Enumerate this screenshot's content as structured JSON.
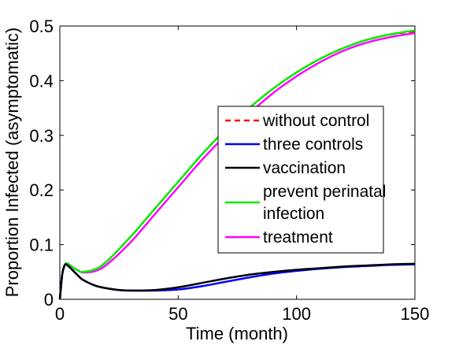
{
  "chart_data": {
    "type": "line",
    "title": "",
    "xlabel": "Time (month)",
    "ylabel": "Proportion Infected (asymptomatic)",
    "xlim": [
      0,
      150
    ],
    "ylim": [
      0,
      0.5
    ],
    "xticks": [
      0,
      50,
      100,
      150
    ],
    "yticks": [
      0,
      0.1,
      0.2,
      0.3,
      0.4,
      0.5
    ],
    "xtick_labels": [
      "0",
      "50",
      "100",
      "150"
    ],
    "ytick_labels": [
      "0",
      "0.1",
      "0.2",
      "0.3",
      "0.4",
      "0.5"
    ],
    "grid": false,
    "legend_position": "right",
    "series": [
      {
        "name": "without control",
        "color": "#ff0000",
        "dash": "dashed",
        "x": [
          0,
          1,
          2,
          3,
          5,
          8,
          10,
          15,
          20,
          30,
          40,
          50,
          60,
          70,
          80,
          90,
          100,
          110,
          120,
          130,
          140,
          150
        ],
        "y": [
          0,
          0.045,
          0.062,
          0.066,
          0.06,
          0.052,
          0.05,
          0.055,
          0.07,
          0.115,
          0.165,
          0.215,
          0.265,
          0.31,
          0.35,
          0.385,
          0.415,
          0.44,
          0.46,
          0.475,
          0.485,
          0.49
        ]
      },
      {
        "name": "three controls",
        "color": "#0000ff",
        "dash": "solid",
        "x": [
          0,
          1,
          2,
          3,
          5,
          8,
          10,
          15,
          20,
          25,
          30,
          40,
          50,
          60,
          70,
          80,
          90,
          100,
          110,
          120,
          130,
          140,
          150
        ],
        "y": [
          0,
          0.045,
          0.062,
          0.063,
          0.055,
          0.042,
          0.035,
          0.025,
          0.02,
          0.017,
          0.016,
          0.016,
          0.018,
          0.024,
          0.032,
          0.04,
          0.047,
          0.052,
          0.056,
          0.059,
          0.061,
          0.063,
          0.064
        ]
      },
      {
        "name": "vaccination",
        "color": "#000000",
        "dash": "solid",
        "x": [
          0,
          1,
          2,
          3,
          5,
          8,
          10,
          15,
          20,
          25,
          30,
          40,
          50,
          60,
          70,
          80,
          90,
          100,
          110,
          120,
          130,
          140,
          150
        ],
        "y": [
          0,
          0.045,
          0.062,
          0.063,
          0.055,
          0.042,
          0.035,
          0.025,
          0.02,
          0.017,
          0.016,
          0.017,
          0.022,
          0.03,
          0.038,
          0.045,
          0.05,
          0.054,
          0.057,
          0.06,
          0.062,
          0.064,
          0.065
        ]
      },
      {
        "name": "prevent perinatal infection",
        "color": "#00ee00",
        "dash": "solid",
        "x": [
          0,
          1,
          2,
          3,
          5,
          8,
          10,
          15,
          20,
          30,
          40,
          50,
          60,
          70,
          80,
          90,
          100,
          110,
          120,
          130,
          140,
          150
        ],
        "y": [
          0,
          0.045,
          0.062,
          0.066,
          0.06,
          0.052,
          0.05,
          0.055,
          0.07,
          0.115,
          0.165,
          0.215,
          0.265,
          0.31,
          0.35,
          0.385,
          0.415,
          0.44,
          0.46,
          0.475,
          0.485,
          0.492
        ]
      },
      {
        "name": "treatment",
        "color": "#ff00ff",
        "dash": "solid",
        "x": [
          0,
          1,
          2,
          3,
          5,
          8,
          10,
          15,
          20,
          30,
          40,
          50,
          60,
          70,
          80,
          90,
          100,
          110,
          120,
          130,
          140,
          150
        ],
        "y": [
          0,
          0.045,
          0.062,
          0.066,
          0.06,
          0.052,
          0.049,
          0.052,
          0.064,
          0.105,
          0.155,
          0.205,
          0.255,
          0.3,
          0.34,
          0.377,
          0.408,
          0.434,
          0.455,
          0.47,
          0.48,
          0.487
        ]
      }
    ],
    "legend_entries": [
      "without control",
      "three controls",
      "vaccination",
      "prevent perinatal",
      "infection",
      "treatment"
    ]
  }
}
